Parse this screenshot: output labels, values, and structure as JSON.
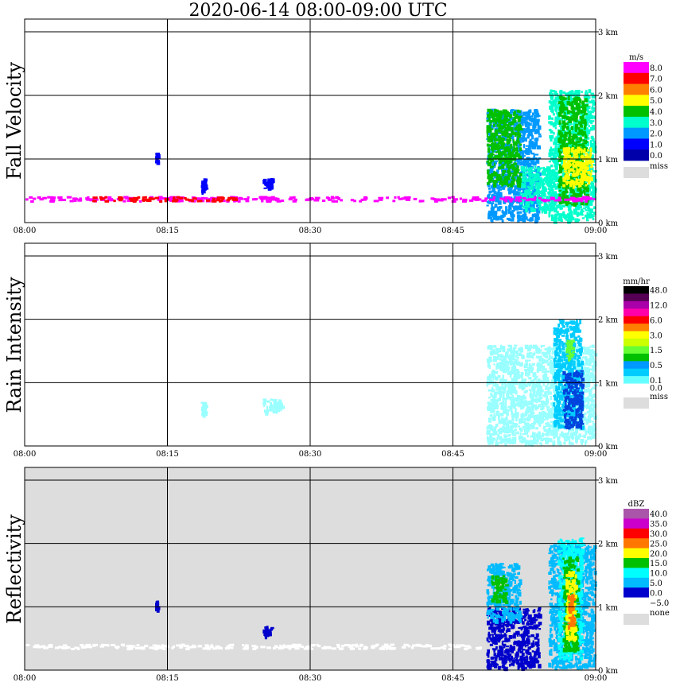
{
  "title": "2020-06-14   08:00-09:00 UTC",
  "chart_data": [
    {
      "type": "heatmap",
      "ylabel": "Fall Velocity",
      "x_ticks": [
        "08:00",
        "08:15",
        "08:30",
        "08:45",
        "09:00"
      ],
      "y_ticks": [
        "0 km",
        "1 km",
        "2 km",
        "3 km"
      ],
      "ylim_km": [
        0,
        3.2
      ],
      "grid": true,
      "background": "#ffffff",
      "legend_unit": "m/s",
      "legend": [
        {
          "label": "8.0",
          "color": "#ff00ff"
        },
        {
          "label": "7.0",
          "color": "#ff0000"
        },
        {
          "label": "6.0",
          "color": "#ff8000"
        },
        {
          "label": "5.0",
          "color": "#ffff00"
        },
        {
          "label": "4.0",
          "color": "#00c000"
        },
        {
          "label": "3.0",
          "color": "#00ffcc"
        },
        {
          "label": "2.0",
          "color": "#0099ff"
        },
        {
          "label": "1.0",
          "color": "#0000ff"
        },
        {
          "label": "0.0",
          "color": "#0000aa"
        }
      ],
      "missing_label": "miss",
      "missing_color": "#dddddd",
      "clusters": [
        {
          "t_min": [
            48.5,
            54
          ],
          "h_km": [
            0.05,
            1.8
          ],
          "color": "#0099ff"
        },
        {
          "t_min": [
            48.5,
            52
          ],
          "h_km": [
            0.6,
            1.8
          ],
          "color": "#00c000"
        },
        {
          "t_min": [
            52,
            55.5
          ],
          "h_km": [
            0.2,
            0.9
          ],
          "color": "#00ffcc"
        },
        {
          "t_min": [
            55,
            59.8
          ],
          "h_km": [
            0.05,
            2.1
          ],
          "color": "#00ffcc"
        },
        {
          "t_min": [
            56,
            59
          ],
          "h_km": [
            0.3,
            2.0
          ],
          "color": "#00c000"
        },
        {
          "t_min": [
            56.5,
            59.5
          ],
          "h_km": [
            0.6,
            1.2
          ],
          "color": "#ffff00"
        },
        {
          "t_min": [
            0,
            60
          ],
          "h_km": [
            0.35,
            0.42
          ],
          "color": "#ff00ff"
        },
        {
          "t_min": [
            7,
            22
          ],
          "h_km": [
            0.35,
            0.42
          ],
          "color": "#ff0000"
        },
        {
          "t_min": [
            13.7,
            13.9
          ],
          "h_km": [
            0.95,
            1.1
          ],
          "color": "#0000ff"
        },
        {
          "t_min": [
            18.5,
            19
          ],
          "h_km": [
            0.5,
            0.7
          ],
          "color": "#0000ff"
        },
        {
          "t_min": [
            25,
            26
          ],
          "h_km": [
            0.55,
            0.7
          ],
          "color": "#0000ff"
        }
      ]
    },
    {
      "type": "heatmap",
      "ylabel": "Rain Intensity",
      "x_ticks": [
        "08:00",
        "08:15",
        "08:30",
        "08:45",
        "09:00"
      ],
      "y_ticks": [
        "0 km",
        "1 km",
        "2 km",
        "3 km"
      ],
      "ylim_km": [
        0,
        3.2
      ],
      "grid": true,
      "background": "#ffffff",
      "legend_unit": "mm/hr",
      "legend": [
        {
          "label": "48.0",
          "color": "#000000"
        },
        {
          "label": "",
          "color": "#550055"
        },
        {
          "label": "12.0",
          "color": "#aa00aa"
        },
        {
          "label": "",
          "color": "#ff00aa"
        },
        {
          "label": "6.0",
          "color": "#ff0000"
        },
        {
          "label": "",
          "color": "#ff8000"
        },
        {
          "label": "3.0",
          "color": "#ffff00"
        },
        {
          "label": "",
          "color": "#ccff00"
        },
        {
          "label": "1.5",
          "color": "#66ff33"
        },
        {
          "label": "",
          "color": "#00c000"
        },
        {
          "label": "0.5",
          "color": "#0099ff"
        },
        {
          "label": "",
          "color": "#00ccff"
        },
        {
          "label": "0.1",
          "color": "#66ffff"
        },
        {
          "label": "0.0",
          "color": "#ffffff"
        }
      ],
      "missing_label": "miss",
      "missing_color": "#dddddd",
      "clusters": [
        {
          "t_min": [
            48.5,
            59.8
          ],
          "h_km": [
            0.05,
            1.6
          ],
          "color": "#99ffff"
        },
        {
          "t_min": [
            55.5,
            58.5
          ],
          "h_km": [
            0.3,
            2.0
          ],
          "color": "#00ccff"
        },
        {
          "t_min": [
            56.5,
            58.5
          ],
          "h_km": [
            0.3,
            1.2
          ],
          "color": "#0044dd"
        },
        {
          "t_min": [
            56.8,
            57.5
          ],
          "h_km": [
            1.4,
            1.7
          ],
          "color": "#66ff33"
        },
        {
          "t_min": [
            18.5,
            19
          ],
          "h_km": [
            0.5,
            0.7
          ],
          "color": "#99ffff"
        },
        {
          "t_min": [
            25,
            27
          ],
          "h_km": [
            0.55,
            0.75
          ],
          "color": "#99ffff"
        }
      ]
    },
    {
      "type": "heatmap",
      "ylabel": "Reflectivity",
      "x_ticks": [
        "08:00",
        "08:15",
        "08:30",
        "08:45",
        "09:00"
      ],
      "y_ticks": [
        "0 km",
        "1 km",
        "2 km",
        "3 km"
      ],
      "ylim_km": [
        0,
        3.2
      ],
      "grid": true,
      "background": "#dddddd",
      "legend_unit": "dBZ",
      "legend": [
        {
          "label": "40.0",
          "color": "#aa55aa"
        },
        {
          "label": "35.0",
          "color": "#cc00cc"
        },
        {
          "label": "30.0",
          "color": "#ff0000"
        },
        {
          "label": "25.0",
          "color": "#ff7700"
        },
        {
          "label": "20.0",
          "color": "#ffff00"
        },
        {
          "label": "15.0",
          "color": "#00c000"
        },
        {
          "label": "10.0",
          "color": "#00ffff"
        },
        {
          "label": "5.0",
          "color": "#00bbff"
        },
        {
          "label": "0.0",
          "color": "#0000cc"
        },
        {
          "label": "−5.0",
          "color": "#ffffff"
        }
      ],
      "missing_label": "none",
      "missing_color": "#dddddd",
      "clusters": [
        {
          "t_min": [
            48.5,
            54
          ],
          "h_km": [
            0.05,
            1.0
          ],
          "color": "#0000cc"
        },
        {
          "t_min": [
            48.5,
            52
          ],
          "h_km": [
            0.8,
            1.7
          ],
          "color": "#00bbff"
        },
        {
          "t_min": [
            49,
            50.5
          ],
          "h_km": [
            1.1,
            1.5
          ],
          "color": "#00c000"
        },
        {
          "t_min": [
            55,
            59.8
          ],
          "h_km": [
            0.05,
            2.0
          ],
          "color": "#00bbff"
        },
        {
          "t_min": [
            56,
            58.5
          ],
          "h_km": [
            0.2,
            2.1
          ],
          "color": "#00ffff"
        },
        {
          "t_min": [
            56.5,
            58
          ],
          "h_km": [
            0.3,
            1.8
          ],
          "color": "#00c000"
        },
        {
          "t_min": [
            56.8,
            57.8
          ],
          "h_km": [
            0.5,
            1.6
          ],
          "color": "#ffff00"
        },
        {
          "t_min": [
            57,
            57.6
          ],
          "h_km": [
            0.7,
            1.2
          ],
          "color": "#ff7700"
        },
        {
          "t_min": [
            0,
            48
          ],
          "h_km": [
            0.35,
            0.42
          ],
          "color": "#ffffff"
        },
        {
          "t_min": [
            13.7,
            13.9
          ],
          "h_km": [
            0.95,
            1.1
          ],
          "color": "#0000cc"
        },
        {
          "t_min": [
            25,
            26
          ],
          "h_km": [
            0.55,
            0.7
          ],
          "color": "#0000cc"
        }
      ]
    }
  ]
}
